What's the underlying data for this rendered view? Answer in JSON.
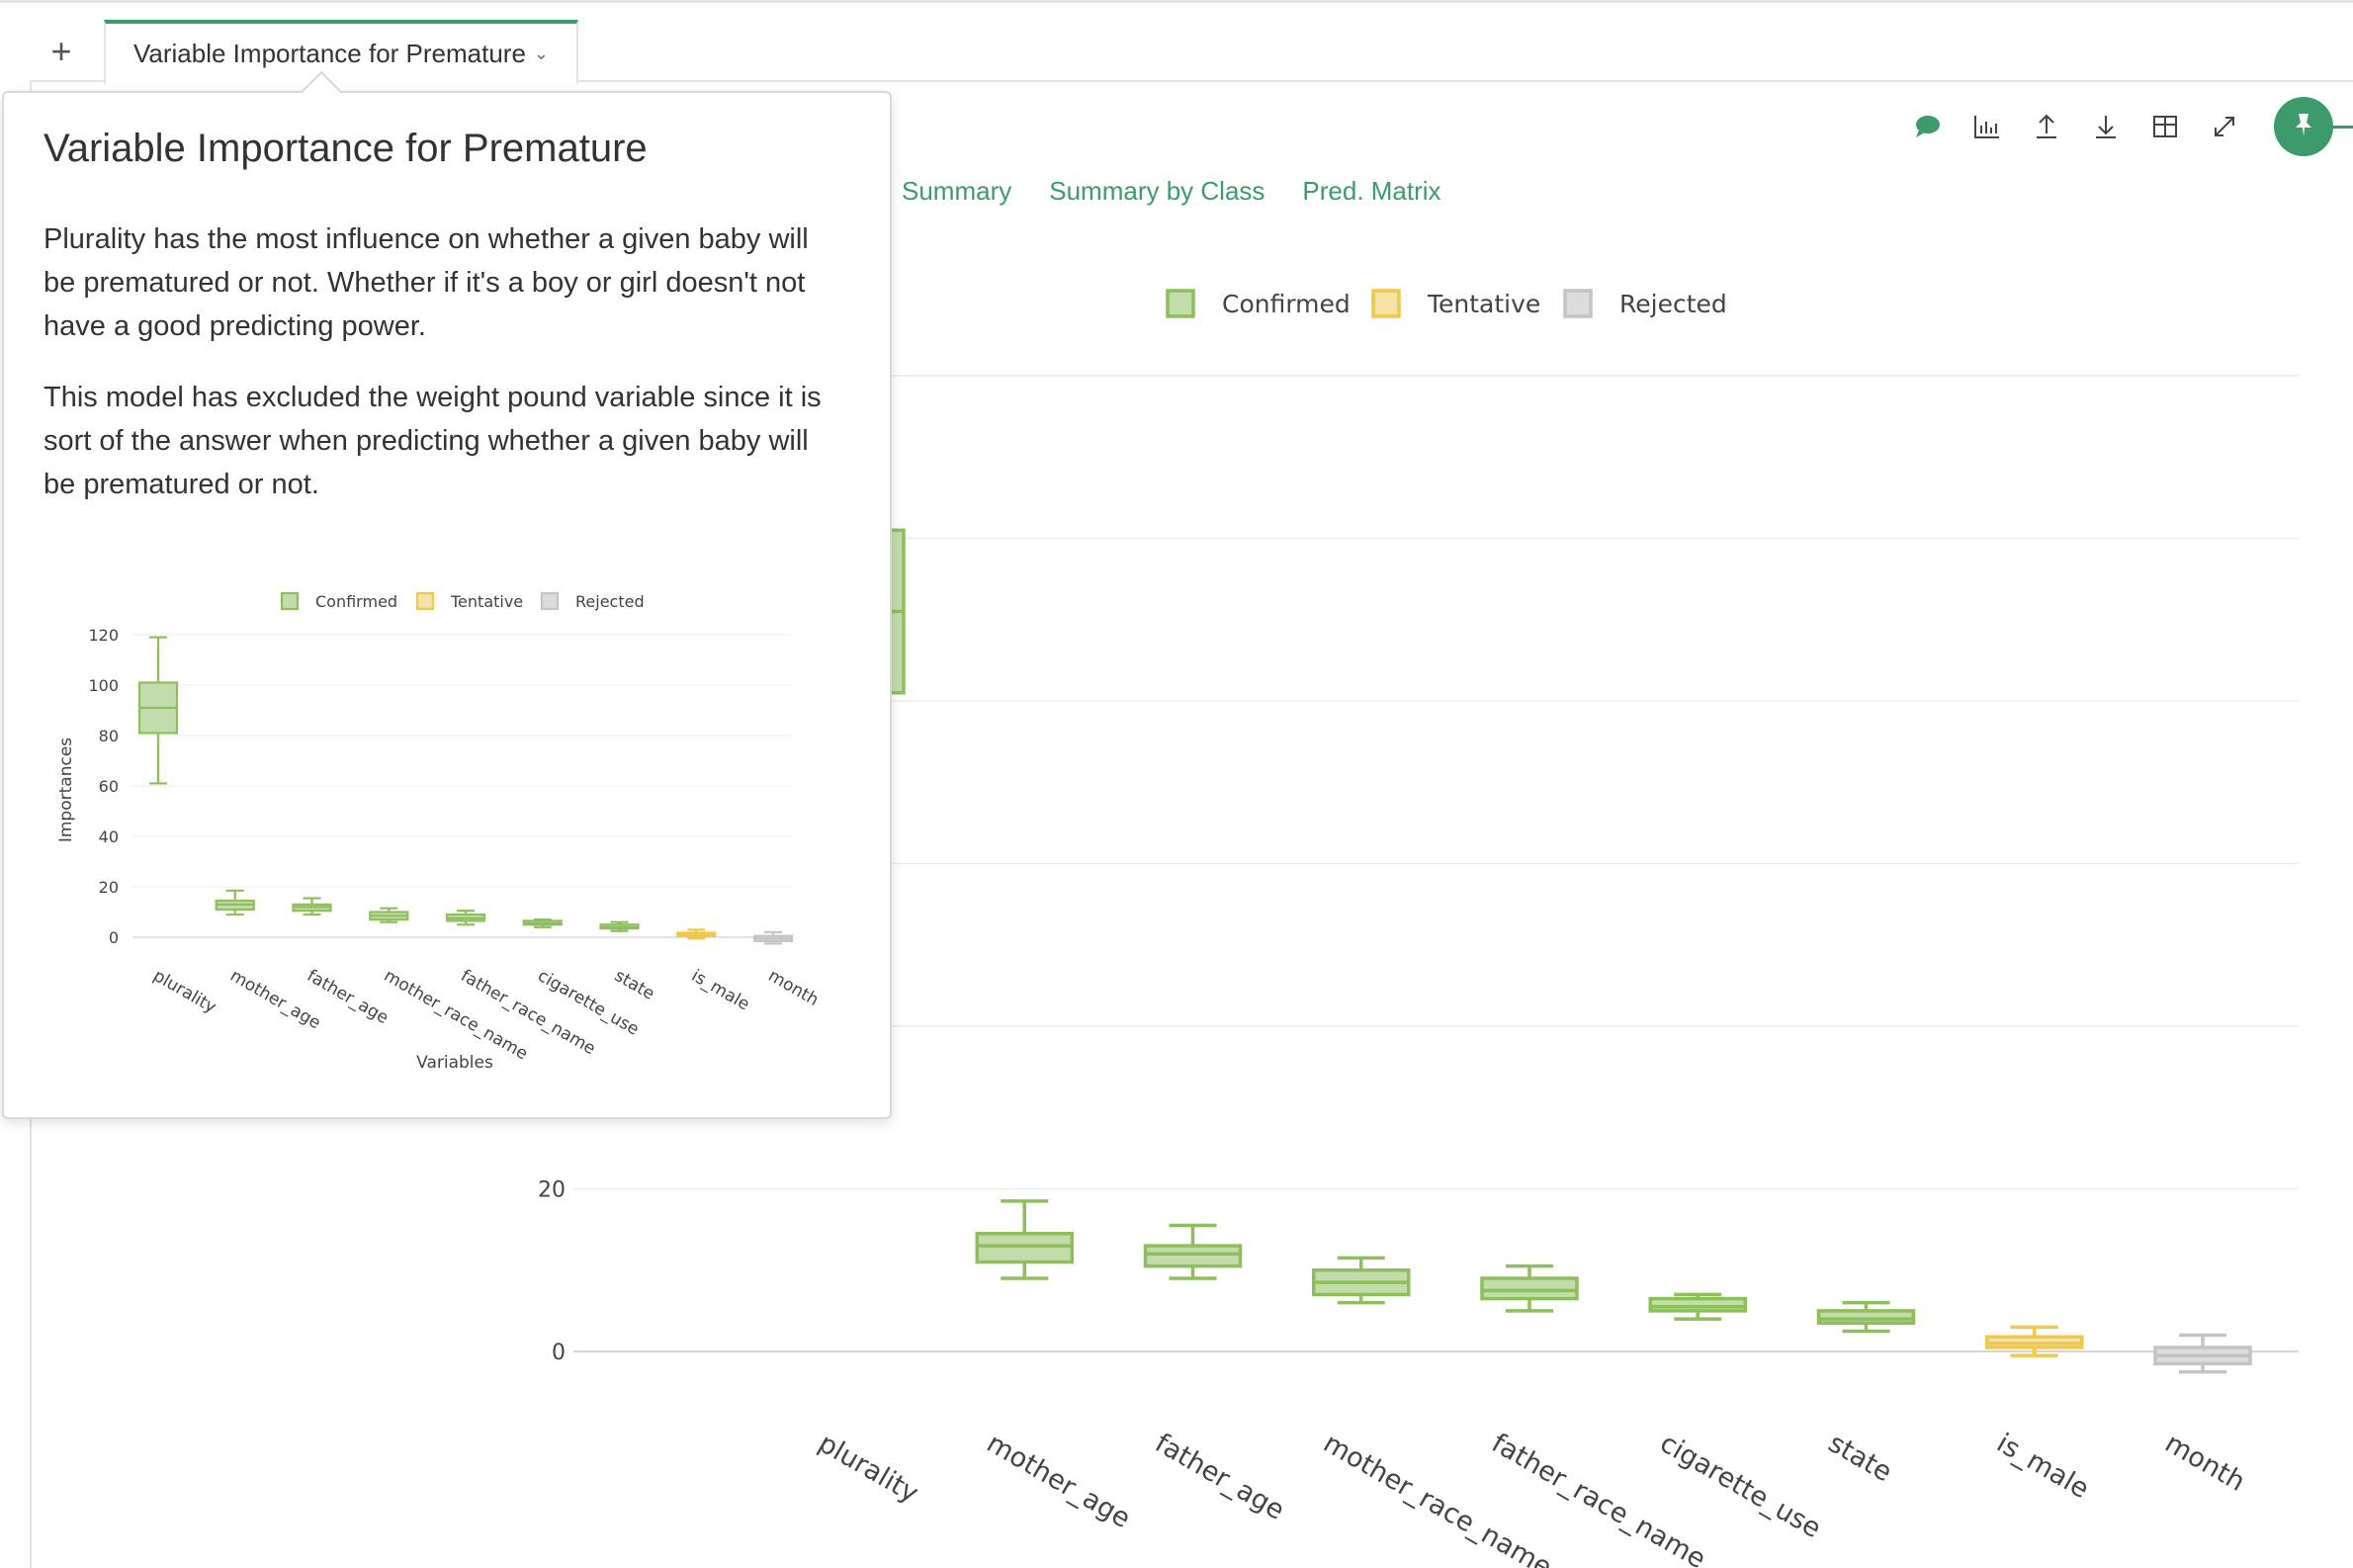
{
  "tabbar": {
    "add_label": "+",
    "tab_label": "Variable Importance for Premature"
  },
  "subtabs": [
    "Summary",
    "Summary by Class",
    "Pred. Matrix"
  ],
  "toolbar": {
    "icons": [
      "comment-icon",
      "chart-icon",
      "upload-icon",
      "download-icon",
      "table-icon",
      "expand-icon"
    ],
    "pin_icon": "pin-icon"
  },
  "colors": {
    "accent": "#3d9a6b",
    "confirmed": "#8dbf5b",
    "tentative": "#f0d27a",
    "rejected": "#c8c8c8"
  },
  "popover": {
    "title": "Variable Importance for Premature",
    "paragraph1": "Plurality has the most influence on whether a given baby will be prematured or not. Whether if it's a boy or girl doesn't not have a good predicting power.",
    "paragraph2": "This model has excluded the weight pound variable since it is sort of the answer when predicting whether a given baby will be prematured or not."
  },
  "chart_data": [
    {
      "type": "box",
      "legend": [
        "Confirmed",
        "Tentative",
        "Rejected"
      ],
      "xlabel": "",
      "ylabel": "",
      "yticks": [
        0,
        20
      ],
      "categories": [
        "plurality",
        "mother_age",
        "father_age",
        "mother_race_name",
        "father_race_name",
        "cigarette_use",
        "state",
        "is_male",
        "month"
      ],
      "boxes": [
        {
          "min": 61,
          "q1": 81,
          "median": 91,
          "q3": 101,
          "max": 119,
          "status": "Confirmed"
        },
        {
          "min": 9,
          "q1": 11,
          "median": 13,
          "q3": 14.5,
          "max": 18.5,
          "status": "Confirmed"
        },
        {
          "min": 9,
          "q1": 10.5,
          "median": 12,
          "q3": 13,
          "max": 15.5,
          "status": "Confirmed"
        },
        {
          "min": 6,
          "q1": 7,
          "median": 8.5,
          "q3": 10,
          "max": 11.5,
          "status": "Confirmed"
        },
        {
          "min": 5,
          "q1": 6.5,
          "median": 7.5,
          "q3": 9,
          "max": 10.5,
          "status": "Confirmed"
        },
        {
          "min": 4,
          "q1": 5,
          "median": 5.5,
          "q3": 6.5,
          "max": 7,
          "status": "Confirmed"
        },
        {
          "min": 2.5,
          "q1": 3.5,
          "median": 4,
          "q3": 5,
          "max": 6,
          "status": "Confirmed"
        },
        {
          "min": -0.5,
          "q1": 0.5,
          "median": 1,
          "q3": 1.8,
          "max": 3,
          "status": "Tentative"
        },
        {
          "min": -2.5,
          "q1": -1.5,
          "median": -0.5,
          "q3": 0.5,
          "max": 2,
          "status": "Rejected"
        }
      ]
    },
    {
      "type": "box",
      "legend": [
        "Confirmed",
        "Tentative",
        "Rejected"
      ],
      "xlabel": "Variables",
      "ylabel": "Importances",
      "yticks": [
        0,
        20,
        40,
        60,
        80,
        100,
        120
      ],
      "ylim": [
        0,
        120
      ],
      "categories": [
        "plurality",
        "mother_age",
        "father_age",
        "mother_race_name",
        "father_race_name",
        "cigarette_use",
        "state",
        "is_male",
        "month"
      ],
      "boxes": [
        {
          "min": 61,
          "q1": 81,
          "median": 91,
          "q3": 101,
          "max": 119,
          "status": "Confirmed"
        },
        {
          "min": 9,
          "q1": 11,
          "median": 13,
          "q3": 14.5,
          "max": 18.5,
          "status": "Confirmed"
        },
        {
          "min": 9,
          "q1": 10.5,
          "median": 12,
          "q3": 13,
          "max": 15.5,
          "status": "Confirmed"
        },
        {
          "min": 6,
          "q1": 7,
          "median": 8.5,
          "q3": 10,
          "max": 11.5,
          "status": "Confirmed"
        },
        {
          "min": 5,
          "q1": 6.5,
          "median": 7.5,
          "q3": 9,
          "max": 10.5,
          "status": "Confirmed"
        },
        {
          "min": 4,
          "q1": 5,
          "median": 5.5,
          "q3": 6.5,
          "max": 7,
          "status": "Confirmed"
        },
        {
          "min": 2.5,
          "q1": 3.5,
          "median": 4,
          "q3": 5,
          "max": 6,
          "status": "Confirmed"
        },
        {
          "min": -0.5,
          "q1": 0.5,
          "median": 1,
          "q3": 1.8,
          "max": 3,
          "status": "Tentative"
        },
        {
          "min": -2.5,
          "q1": -1.5,
          "median": -0.5,
          "q3": 0.5,
          "max": 2,
          "status": "Rejected"
        }
      ]
    }
  ]
}
